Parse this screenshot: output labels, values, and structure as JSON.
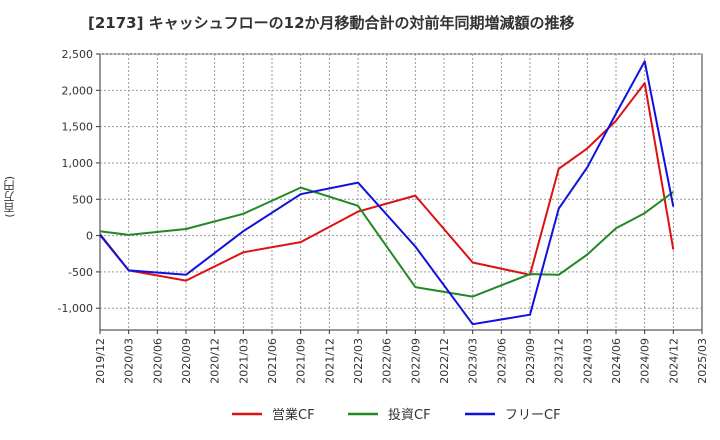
{
  "chart_data": {
    "type": "line",
    "title": "[2173]  キャッシュフローの12か月移動合計の対前年同期増減額の推移",
    "ylabel": "(百万円)",
    "xlabel": "",
    "ylim": [
      -1300,
      2500
    ],
    "yticks": [
      2500,
      2000,
      1500,
      1000,
      500,
      0,
      -500,
      -1000
    ],
    "ytick_labels": [
      "2,500",
      "2,000",
      "1,500",
      "1,000",
      "500",
      "0",
      "-500",
      "-1,000"
    ],
    "categories": [
      "2019/12",
      "2020/03",
      "2020/06",
      "2020/09",
      "2020/12",
      "2021/03",
      "2021/06",
      "2021/09",
      "2021/12",
      "2022/03",
      "2022/06",
      "2022/09",
      "2022/12",
      "2023/03",
      "2023/06",
      "2023/09",
      "2023/12",
      "2024/03",
      "2024/06",
      "2024/09",
      "2024/12",
      "2025/03"
    ],
    "grid": true,
    "legend": "bottom",
    "series": [
      {
        "name": "営業CF",
        "color": "#dd1111",
        "values": [
          20,
          -480,
          null,
          -620,
          null,
          -230,
          null,
          -90,
          null,
          330,
          null,
          550,
          null,
          -370,
          null,
          -540,
          920,
          1200,
          1580,
          2100,
          -190,
          null
        ]
      },
      {
        "name": "投資CF",
        "color": "#228822",
        "values": [
          60,
          10,
          null,
          90,
          null,
          300,
          null,
          660,
          null,
          410,
          null,
          -710,
          null,
          -840,
          null,
          -530,
          -540,
          -260,
          100,
          310,
          600,
          null
        ]
      },
      {
        "name": "フリーCF",
        "color": "#1111dd",
        "values": [
          10,
          -480,
          null,
          -540,
          null,
          60,
          null,
          570,
          null,
          730,
          null,
          -150,
          null,
          -1220,
          null,
          -1090,
          370,
          940,
          1680,
          2400,
          400,
          null
        ]
      }
    ]
  }
}
